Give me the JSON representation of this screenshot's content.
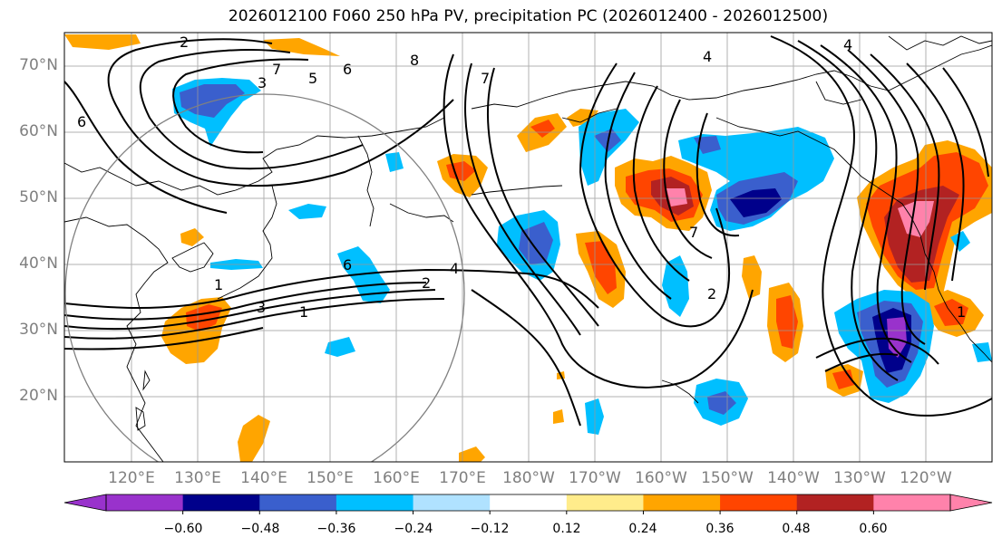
{
  "title": "2026012100 F060 250 hPa PV, precipitation PC (2026012400 - 2026012500)",
  "map": {
    "lat_ticks": [
      "70°N",
      "60°N",
      "50°N",
      "40°N",
      "30°N",
      "20°N"
    ],
    "lon_ticks": [
      "120°E",
      "130°E",
      "140°E",
      "150°E",
      "160°E",
      "170°E",
      "180°W",
      "170°W",
      "160°W",
      "150°W",
      "140°W",
      "130°W",
      "120°W"
    ],
    "contour_labels": [
      "1",
      "2",
      "3",
      "4",
      "5",
      "6",
      "7",
      "8",
      "1",
      "2",
      "3",
      "4",
      "6",
      "7",
      "1",
      "2",
      "4",
      "6",
      "7"
    ]
  },
  "colorbar": {
    "labels": [
      "−0.60",
      "−0.48",
      "−0.36",
      "−0.24",
      "−0.12",
      "0.12",
      "0.24",
      "0.36",
      "0.48",
      "0.60"
    ],
    "colors": [
      "#9932cc",
      "#00008b",
      "#3a5fcd",
      "#00bfff",
      "#b0e2ff",
      "#ffffff",
      "#ffec8b",
      "#ffa500",
      "#ff4500",
      "#b22222",
      "#ff82ab"
    ]
  }
}
